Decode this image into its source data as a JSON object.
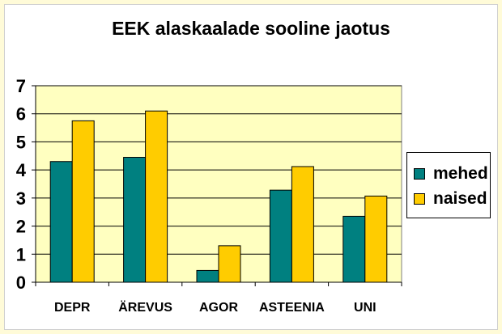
{
  "chart_data": {
    "type": "bar",
    "title": "EEK alaskaalade sooline jaotus",
    "categories": [
      "DEPR",
      "ÄREVUS",
      "AGOR",
      "ASTEENIA",
      "UNI"
    ],
    "series": [
      {
        "name": "mehed",
        "values": [
          4.3,
          4.45,
          0.42,
          3.28,
          2.35
        ],
        "color": "#008080"
      },
      {
        "name": "naised",
        "values": [
          5.75,
          6.1,
          1.3,
          4.12,
          3.07
        ],
        "color": "#ffcc00"
      }
    ],
    "ylim": [
      0,
      7
    ],
    "yticks": [
      "0",
      "1",
      "2",
      "3",
      "4",
      "5",
      "6",
      "7"
    ],
    "grid": true,
    "legend_position": "right",
    "colors": {
      "plot_background": "#ffffc0",
      "page_background": "#fffbd8"
    }
  }
}
